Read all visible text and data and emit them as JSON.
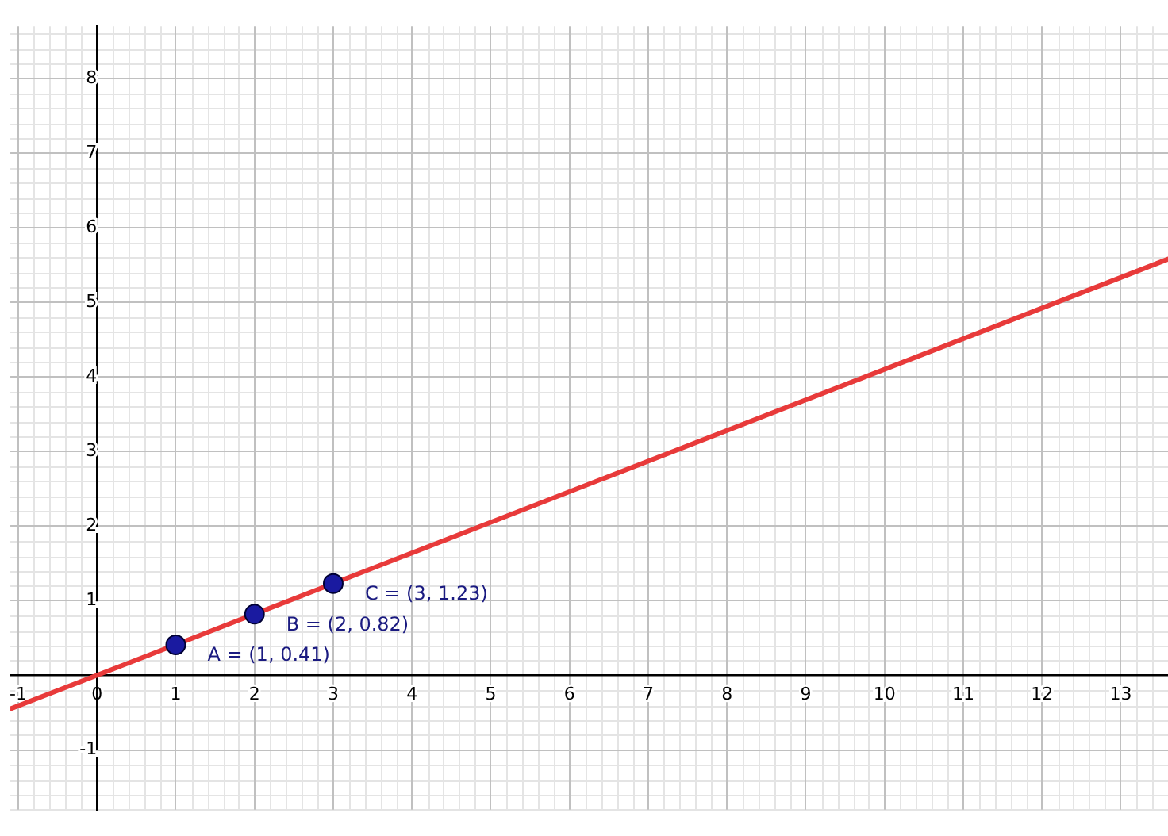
{
  "chart_data": {
    "type": "scatter",
    "xlim": [
      -1.1,
      13.6
    ],
    "ylim": [
      -1.8,
      8.7
    ],
    "xticks": [
      -1,
      0,
      1,
      2,
      3,
      4,
      5,
      6,
      7,
      8,
      9,
      10,
      11,
      12,
      13
    ],
    "yticks": [
      -1,
      {
        "value": 0,
        "label": null
      },
      1,
      2,
      3,
      4,
      5,
      6,
      7,
      8
    ],
    "grid": true,
    "legend": false,
    "marker": "circle",
    "series": [
      {
        "type": "line",
        "color": "#e83a3a",
        "x": [
          -1.1,
          13.6
        ],
        "values": [
          -0.45,
          5.58
        ],
        "marker": "none",
        "line_style": "solid"
      },
      {
        "color": "#1a1aa0",
        "x": [
          1,
          2,
          3
        ],
        "values": [
          0.41,
          0.82,
          1.23
        ]
      }
    ],
    "annotations": [
      {
        "text": "A = (1, 0.41)",
        "x": 1,
        "y": 0.41
      },
      {
        "text": "B = (2, 0.82)",
        "x": 2,
        "y": 0.82
      },
      {
        "text": "C = (3, 1.23)",
        "x": 3,
        "y": 1.23
      }
    ]
  }
}
